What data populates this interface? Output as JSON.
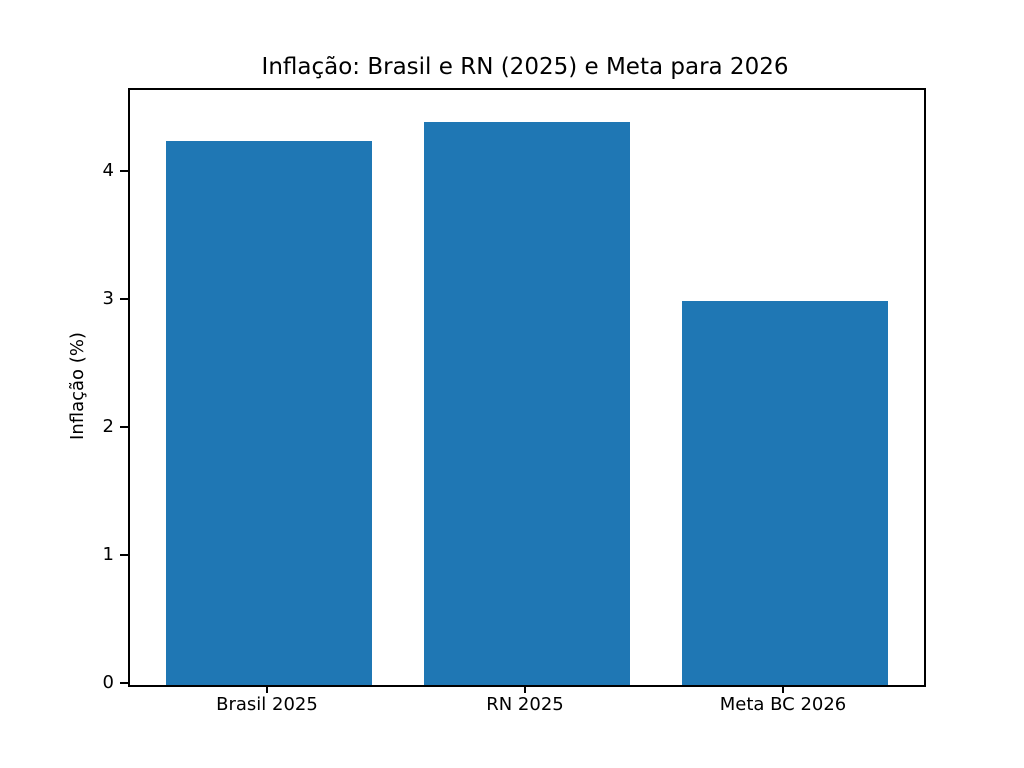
{
  "chart_data": {
    "type": "bar",
    "title": "Inflação: Brasil e RN (2025) e Meta para 2026",
    "categories": [
      "Brasil 2025",
      "RN 2025",
      "Meta BC 2026"
    ],
    "values": [
      4.25,
      4.4,
      3.0
    ],
    "xlabel": "",
    "ylabel": "Inflação (%)",
    "ylim": [
      0,
      4.65
    ],
    "yticks": [
      0,
      1,
      2,
      3,
      4
    ],
    "bar_color": "#1f77b4",
    "bar_width_fraction": 0.8,
    "grid": false,
    "legend": null,
    "background_color": "#ffffff",
    "axis_color": "#000000"
  }
}
